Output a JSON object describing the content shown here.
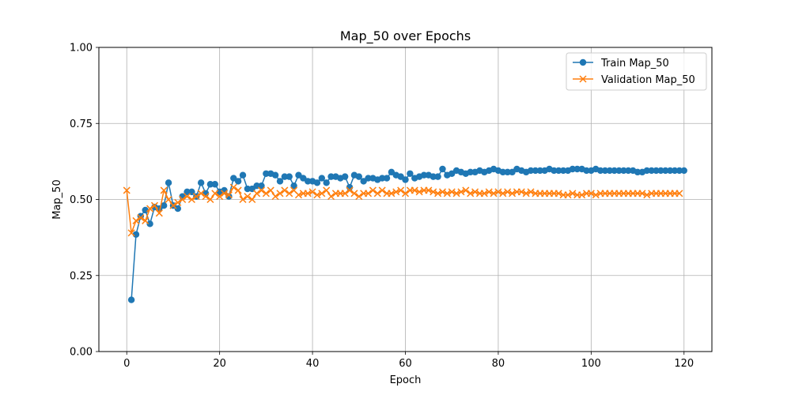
{
  "chart_data": {
    "type": "line",
    "title": "Map_50 over Epochs",
    "xlabel": "Epoch",
    "ylabel": "Map_50",
    "xlim": [
      -6,
      126
    ],
    "ylim": [
      0,
      1
    ],
    "xticks": [
      "0",
      "20",
      "40",
      "60",
      "80",
      "100",
      "120"
    ],
    "yticks": [
      "0.00",
      "0.25",
      "0.50",
      "0.75",
      "1.00"
    ],
    "grid": true,
    "legend_position": "top-right",
    "series": [
      {
        "name": "Train Map_50",
        "color": "#1f77b4",
        "marker": "circle",
        "x": [
          1,
          2,
          3,
          4,
          5,
          6,
          7,
          8,
          9,
          10,
          11,
          12,
          13,
          14,
          15,
          16,
          17,
          18,
          19,
          20,
          21,
          22,
          23,
          24,
          25,
          26,
          27,
          28,
          29,
          30,
          31,
          32,
          33,
          34,
          35,
          36,
          37,
          38,
          39,
          40,
          41,
          42,
          43,
          44,
          45,
          46,
          47,
          48,
          49,
          50,
          51,
          52,
          53,
          54,
          55,
          56,
          57,
          58,
          59,
          60,
          61,
          62,
          63,
          64,
          65,
          66,
          67,
          68,
          69,
          70,
          71,
          72,
          73,
          74,
          75,
          76,
          77,
          78,
          79,
          80,
          81,
          82,
          83,
          84,
          85,
          86,
          87,
          88,
          89,
          90,
          91,
          92,
          93,
          94,
          95,
          96,
          97,
          98,
          99,
          100,
          101,
          102,
          103,
          104,
          105,
          106,
          107,
          108,
          109,
          110,
          111,
          112,
          113,
          114,
          115,
          116,
          117,
          118,
          119,
          120
        ],
        "values": [
          0.17,
          0.385,
          0.445,
          0.465,
          0.42,
          0.475,
          0.47,
          0.48,
          0.555,
          0.48,
          0.47,
          0.51,
          0.525,
          0.525,
          0.51,
          0.555,
          0.52,
          0.55,
          0.55,
          0.525,
          0.53,
          0.51,
          0.57,
          0.56,
          0.58,
          0.535,
          0.535,
          0.545,
          0.545,
          0.585,
          0.585,
          0.58,
          0.56,
          0.575,
          0.575,
          0.545,
          0.58,
          0.57,
          0.56,
          0.56,
          0.555,
          0.57,
          0.555,
          0.575,
          0.575,
          0.57,
          0.575,
          0.54,
          0.58,
          0.575,
          0.56,
          0.57,
          0.57,
          0.565,
          0.57,
          0.57,
          0.59,
          0.58,
          0.575,
          0.565,
          0.585,
          0.57,
          0.575,
          0.58,
          0.58,
          0.575,
          0.575,
          0.6,
          0.58,
          0.585,
          0.595,
          0.59,
          0.585,
          0.59,
          0.59,
          0.595,
          0.59,
          0.595,
          0.6,
          0.595,
          0.59,
          0.59,
          0.59,
          0.6,
          0.595,
          0.59,
          0.595,
          0.595,
          0.595,
          0.595,
          0.6,
          0.595,
          0.595,
          0.595,
          0.595,
          0.6,
          0.6,
          0.6,
          0.595,
          0.595,
          0.6,
          0.595,
          0.595,
          0.595,
          0.595,
          0.595,
          0.595,
          0.595,
          0.595,
          0.59,
          0.59,
          0.595,
          0.595,
          0.595,
          0.595,
          0.595,
          0.595,
          0.595,
          0.595,
          0.595
        ]
      },
      {
        "name": "Validation Map_50",
        "color": "#ff7f0e",
        "marker": "x",
        "x": [
          0,
          1,
          2,
          3,
          4,
          5,
          6,
          7,
          8,
          9,
          10,
          11,
          12,
          13,
          14,
          15,
          16,
          17,
          18,
          19,
          20,
          21,
          22,
          23,
          24,
          25,
          26,
          27,
          28,
          29,
          30,
          31,
          32,
          33,
          34,
          35,
          36,
          37,
          38,
          39,
          40,
          41,
          42,
          43,
          44,
          45,
          46,
          47,
          48,
          49,
          50,
          51,
          52,
          53,
          54,
          55,
          56,
          57,
          58,
          59,
          60,
          61,
          62,
          63,
          64,
          65,
          66,
          67,
          68,
          69,
          70,
          71,
          72,
          73,
          74,
          75,
          76,
          77,
          78,
          79,
          80,
          81,
          82,
          83,
          84,
          85,
          86,
          87,
          88,
          89,
          90,
          91,
          92,
          93,
          94,
          95,
          96,
          97,
          98,
          99,
          100,
          101,
          102,
          103,
          104,
          105,
          106,
          107,
          108,
          109,
          110,
          111,
          112,
          113,
          114,
          115,
          116,
          117,
          118,
          119
        ],
        "values": [
          0.53,
          0.39,
          0.43,
          0.44,
          0.43,
          0.47,
          0.48,
          0.455,
          0.53,
          0.5,
          0.48,
          0.49,
          0.5,
          0.51,
          0.5,
          0.51,
          0.52,
          0.51,
          0.5,
          0.52,
          0.51,
          0.52,
          0.515,
          0.54,
          0.53,
          0.5,
          0.51,
          0.5,
          0.52,
          0.53,
          0.52,
          0.53,
          0.51,
          0.52,
          0.53,
          0.52,
          0.53,
          0.515,
          0.52,
          0.52,
          0.525,
          0.515,
          0.52,
          0.53,
          0.51,
          0.52,
          0.52,
          0.52,
          0.53,
          0.52,
          0.51,
          0.52,
          0.52,
          0.53,
          0.52,
          0.53,
          0.52,
          0.52,
          0.525,
          0.53,
          0.52,
          0.53,
          0.53,
          0.525,
          0.53,
          0.53,
          0.525,
          0.52,
          0.525,
          0.52,
          0.525,
          0.52,
          0.525,
          0.53,
          0.52,
          0.525,
          0.52,
          0.52,
          0.525,
          0.52,
          0.525,
          0.52,
          0.525,
          0.52,
          0.525,
          0.525,
          0.52,
          0.525,
          0.52,
          0.52,
          0.52,
          0.52,
          0.52,
          0.52,
          0.515,
          0.515,
          0.52,
          0.515,
          0.515,
          0.52,
          0.52,
          0.515,
          0.52,
          0.52,
          0.52,
          0.52,
          0.52,
          0.52,
          0.52,
          0.52,
          0.52,
          0.52,
          0.515,
          0.52,
          0.52,
          0.52,
          0.52,
          0.52,
          0.52,
          0.52
        ]
      }
    ]
  }
}
